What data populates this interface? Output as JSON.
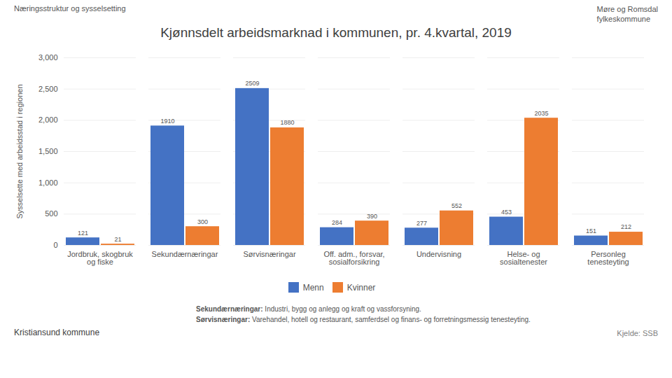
{
  "chart_data": {
    "type": "bar",
    "title": "Kjønnsdelt arbeidsmarknad i kommunen, pr. 4.kvartal, 2019",
    "ylabel": "Sysselsette med arbeidsstad i regionen",
    "categories": [
      "Jordbruk, skogbruk\nog fiske",
      "Sekundærnæringar",
      "Sørvisnæringar",
      "Off. adm., forsvar,\nsosialforsikring",
      "Undervisning",
      "Helse- og\nsosialtenester",
      "Personleg\ntenesteyting"
    ],
    "series": [
      {
        "name": "Menn",
        "color": "#4472c4",
        "values": [
          121,
          1910,
          2509,
          284,
          277,
          453,
          151
        ]
      },
      {
        "name": "Kvinner",
        "color": "#ed7d31",
        "values": [
          21,
          300,
          1880,
          390,
          552,
          2035,
          212
        ]
      }
    ],
    "ylim": [
      0,
      3000
    ],
    "yticks": [
      0,
      500,
      {
        "value": 1000,
        "label": "1,000"
      },
      {
        "value": 1500,
        "label": "1,500"
      },
      {
        "value": 2000,
        "label": "2,000"
      },
      {
        "value": 2500,
        "label": "2,500"
      },
      {
        "value": 3000,
        "label": "3,000"
      }
    ],
    "grid": true,
    "data_labels": true,
    "legend": "bottom",
    "annotations": {
      "header": "Næringsstruktur og sysselsetting",
      "logo": "Møre og Romsdal\nfylkeskommune",
      "footnotes": [
        [
          "Sekundærnæringar:",
          "Industri, bygg og anlegg og kraft og vassforsyning."
        ],
        [
          "Sørvisnæringar:",
          "Varehandel, hotell og restaurant, samferdsel og finans- og forretningsmessig tenesteyting."
        ]
      ],
      "footer_left": "Kristiansund kommune",
      "footer_right": "Kjelde: SSB"
    }
  }
}
